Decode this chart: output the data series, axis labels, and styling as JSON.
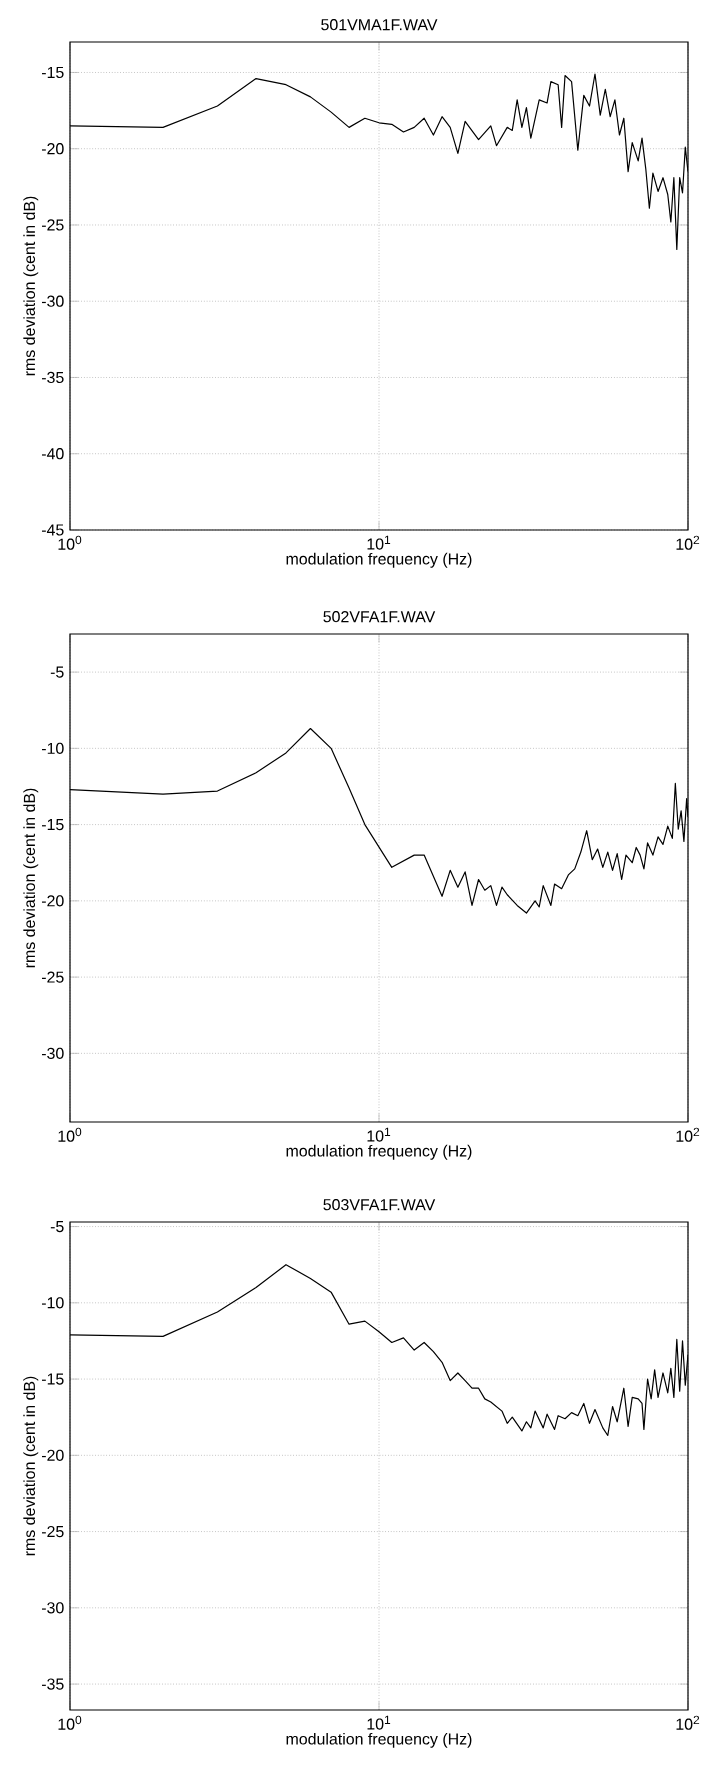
{
  "chart_data": [
    {
      "type": "line",
      "title": "501VMA1F.WAV",
      "xlabel": "modulation frequency (Hz)",
      "ylabel": "rms deviation (cent in dB)",
      "log": "x",
      "grid": true,
      "line_style": "solid",
      "xlim": [
        1,
        100
      ],
      "ylim": [
        -45,
        -13
      ],
      "xticks": [
        {
          "value": 1,
          "label": "10$^{0}$"
        },
        {
          "value": 10,
          "label": "10$^{1}$"
        },
        {
          "value": 100,
          "label": "10$^{2}$"
        }
      ],
      "yticks": [
        -45,
        -40,
        -35,
        -30,
        -25,
        -20,
        -15
      ],
      "x": [
        1,
        2,
        3,
        4,
        5,
        6,
        7,
        8,
        9,
        10,
        11,
        12,
        13,
        14,
        15,
        16,
        17,
        18,
        19,
        21,
        23,
        24,
        26,
        27,
        28,
        29,
        30,
        31,
        33,
        35,
        36,
        38,
        39,
        40,
        42,
        44,
        46,
        48,
        50,
        52,
        54,
        56,
        58,
        60,
        62,
        64,
        66,
        69,
        71,
        73,
        75,
        77,
        80,
        83,
        86,
        88,
        90,
        92,
        94,
        96,
        98,
        100
      ],
      "series": [
        {
          "color": "#000000",
          "values": [
            -18.5,
            -18.6,
            -17.2,
            -15.4,
            -15.8,
            -16.6,
            -17.6,
            -18.6,
            -18.0,
            -18.3,
            -18.4,
            -18.9,
            -18.6,
            -18.0,
            -19.1,
            -17.9,
            -18.6,
            -20.3,
            -18.2,
            -19.4,
            -18.5,
            -19.8,
            -18.6,
            -18.8,
            -16.8,
            -18.6,
            -17.3,
            -19.3,
            -16.8,
            -17.0,
            -15.6,
            -15.8,
            -18.6,
            -15.2,
            -15.6,
            -20.1,
            -16.5,
            -17.2,
            -15.1,
            -17.8,
            -16.1,
            -17.9,
            -16.8,
            -19.1,
            -18.0,
            -21.5,
            -19.6,
            -20.8,
            -19.3,
            -21.3,
            -23.9,
            -21.6,
            -22.8,
            -21.9,
            -23.0,
            -24.8,
            -21.9,
            -26.6,
            -21.9,
            -22.9,
            -19.9,
            -21.5
          ]
        }
      ]
    },
    {
      "type": "line",
      "title": "502VFA1F.WAV",
      "xlabel": "modulation frequency (Hz)",
      "ylabel": "rms deviation (cent in dB)",
      "log": "x",
      "grid": true,
      "line_style": "solid",
      "xlim": [
        1,
        100
      ],
      "ylim": [
        -34.5,
        -2.5
      ],
      "xticks": [
        {
          "value": 1,
          "label": "10$^{0}$"
        },
        {
          "value": 10,
          "label": "10$^{1}$"
        },
        {
          "value": 100,
          "label": "10$^{2}$"
        }
      ],
      "yticks": [
        -30,
        -25,
        -20,
        -15,
        -10,
        -5
      ],
      "x": [
        1,
        2,
        3,
        4,
        5,
        6,
        7,
        8,
        9,
        11,
        13,
        14,
        16,
        17,
        18,
        19,
        20,
        21,
        22,
        23,
        24,
        25,
        26,
        28,
        30,
        32,
        33,
        34,
        36,
        37,
        39,
        41,
        43,
        45,
        47,
        49,
        51,
        53,
        55,
        57,
        59,
        61,
        63,
        66,
        68,
        70,
        72,
        74,
        77,
        80,
        83,
        86,
        89,
        91,
        93,
        95,
        97,
        99,
        100
      ],
      "series": [
        {
          "color": "#000000",
          "values": [
            -12.7,
            -13.0,
            -12.8,
            -11.6,
            -10.3,
            -8.7,
            -10.0,
            -12.6,
            -15.0,
            -17.8,
            -17.0,
            -17.0,
            -19.7,
            -18.0,
            -19.1,
            -18.1,
            -20.3,
            -18.6,
            -19.3,
            -19.0,
            -20.3,
            -19.1,
            -19.6,
            -20.3,
            -20.8,
            -20.0,
            -20.4,
            -19.0,
            -20.3,
            -18.9,
            -19.2,
            -18.3,
            -17.9,
            -16.8,
            -15.4,
            -17.3,
            -16.6,
            -17.8,
            -16.8,
            -18.0,
            -16.9,
            -18.6,
            -17.0,
            -17.5,
            -16.5,
            -17.0,
            -17.9,
            -16.2,
            -17.0,
            -15.8,
            -16.3,
            -15.1,
            -15.9,
            -12.3,
            -15.3,
            -14.1,
            -16.1,
            -13.3,
            -14.5
          ]
        }
      ]
    },
    {
      "type": "line",
      "title": "503VFA1F.WAV",
      "xlabel": "modulation frequency (Hz)",
      "ylabel": "rms deviation (cent in dB)",
      "log": "x",
      "grid": true,
      "line_style": "solid",
      "xlim": [
        1,
        100
      ],
      "ylim": [
        -36.7,
        -4.7
      ],
      "xticks": [
        {
          "value": 1,
          "label": "10$^{0}$"
        },
        {
          "value": 10,
          "label": "10$^{1}$"
        },
        {
          "value": 100,
          "label": "10$^{2}$"
        }
      ],
      "yticks": [
        -35,
        -30,
        -25,
        -20,
        -15,
        -10,
        -5
      ],
      "x": [
        1,
        2,
        3,
        4,
        5,
        6,
        7,
        8,
        9,
        10,
        11,
        12,
        13,
        14,
        15,
        16,
        17,
        18,
        19,
        20,
        21,
        22,
        23,
        25,
        26,
        27,
        29,
        30,
        31,
        32,
        34,
        35,
        37,
        38,
        40,
        42,
        44,
        46,
        48,
        50,
        53,
        55,
        57,
        59,
        62,
        64,
        66,
        69,
        71,
        72,
        74,
        76,
        78,
        80,
        83,
        86,
        88,
        90,
        92,
        94,
        96,
        98,
        100
      ],
      "series": [
        {
          "color": "#000000",
          "values": [
            -12.1,
            -12.2,
            -10.6,
            -9.0,
            -7.5,
            -8.4,
            -9.3,
            -11.4,
            -11.2,
            -11.9,
            -12.6,
            -12.3,
            -13.1,
            -12.6,
            -13.2,
            -13.9,
            -15.1,
            -14.6,
            -15.1,
            -15.6,
            -15.6,
            -16.3,
            -16.5,
            -17.1,
            -17.9,
            -17.5,
            -18.4,
            -17.8,
            -18.2,
            -17.1,
            -18.2,
            -17.3,
            -18.3,
            -17.4,
            -17.6,
            -17.2,
            -17.4,
            -16.6,
            -17.9,
            -17.0,
            -18.2,
            -18.7,
            -16.8,
            -17.8,
            -15.6,
            -18.1,
            -16.2,
            -16.3,
            -16.6,
            -18.3,
            -15.0,
            -16.3,
            -14.4,
            -16.2,
            -14.6,
            -15.9,
            -14.3,
            -16.2,
            -12.4,
            -15.8,
            -12.5,
            -15.4,
            -13.4
          ]
        }
      ]
    }
  ]
}
